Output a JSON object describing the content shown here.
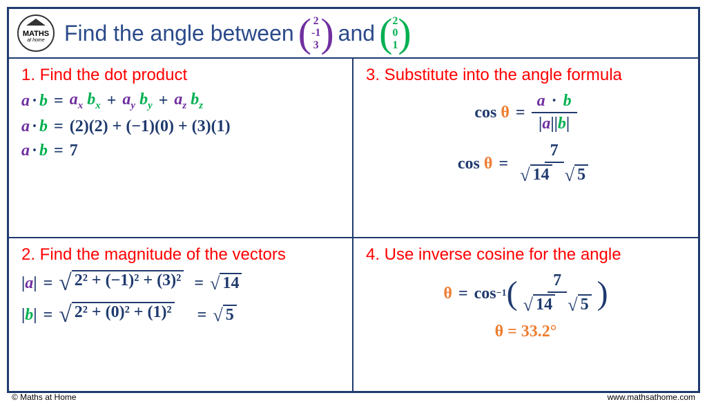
{
  "colors": {
    "frame_border": "#1f3a6e",
    "title_text": "#2a4a8a",
    "header_border": "#1f3a6e",
    "cell_border": "#1f3a6e",
    "step_heading": "#ff0000",
    "vector_a": "#7030a0",
    "vector_b": "#00b050",
    "math_dark": "#1f3a6e",
    "theta": "#ed7d31",
    "answer": "#ed7d31"
  },
  "logo": {
    "line1": "MATHS",
    "line2": "at home"
  },
  "title": {
    "prefix": "Find the angle between ",
    "vec_a": [
      "2",
      "-1",
      "3"
    ],
    "mid": " and ",
    "vec_b": [
      "2",
      "0",
      "1"
    ]
  },
  "steps": {
    "s1": {
      "heading": "1. Find the dot product",
      "line1": {
        "ax": "a",
        "bx": "b",
        "sx": "x",
        "ay": "a",
        "by": "b",
        "sy": "y",
        "az": "a",
        "bz": "b",
        "sz": "z"
      },
      "line2": "(2)(2) + (−1)(0) + (3)(1)",
      "line3_val": "7"
    },
    "s2": {
      "heading": "2. Find the magnitude of the vectors",
      "a_body": "2² + (−1)² + (3)²",
      "a_res": "14",
      "b_body": "2² + (0)² + (1)²",
      "b_res": "5"
    },
    "s3": {
      "heading": "3. Substitute into the angle formula",
      "num_val": "7",
      "den_a": "14",
      "den_b": "5"
    },
    "s4": {
      "heading": "4. Use inverse cosine for the angle",
      "num_val": "7",
      "den_a": "14",
      "den_b": "5",
      "answer": "θ = 33.2°"
    }
  },
  "footer": {
    "left": "© Maths at Home",
    "right": "www.mathsathome.com"
  }
}
